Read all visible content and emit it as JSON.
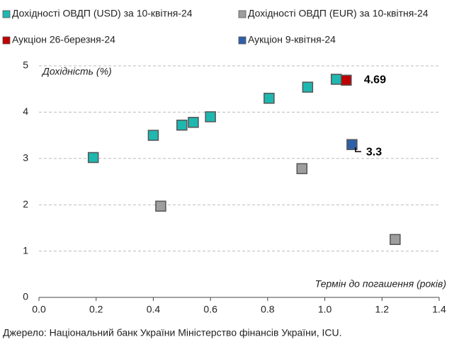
{
  "chart_data": {
    "type": "scatter",
    "y_label": "Дохідність (%)",
    "x_label": "Термін до погашення (років)",
    "source": "Джерело: Національний банк України Міністерство фінансів України, ICU.",
    "xlim": [
      0,
      1.4
    ],
    "xticks": [
      {
        "value": 0,
        "label": "0.0"
      },
      {
        "value": 0.2,
        "label": "0.2"
      },
      {
        "value": 0.4,
        "label": "0.4"
      },
      {
        "value": 0.6,
        "label": "0.6"
      },
      {
        "value": 0.8,
        "label": "0.8"
      },
      {
        "value": 1,
        "label": "1.0"
      },
      {
        "value": 1.2,
        "label": "1.2"
      },
      {
        "value": 1.4,
        "label": "1.4"
      }
    ],
    "ylim": [
      0,
      5
    ],
    "yticks": [
      0,
      1,
      2,
      3,
      4,
      5
    ],
    "grid": true,
    "series": [
      {
        "name": "Дохідності ОВДП (USD) за 10-квітня-24",
        "color": "#1fb8b0",
        "x": [
          0.19,
          0.4,
          0.5,
          0.54,
          0.6,
          0.805,
          0.94,
          1.04
        ],
        "values": [
          3.02,
          3.5,
          3.72,
          3.78,
          3.9,
          4.3,
          4.54,
          4.71
        ]
      },
      {
        "name": "Дохідності ОВДП (EUR) за 10-квітня-24",
        "color": "#9e9e9e",
        "x": [
          0.426,
          0.92,
          1.246
        ],
        "values": [
          1.97,
          2.78,
          1.25
        ]
      },
      {
        "name": "Аукціон 26-березня-24",
        "color": "#c00000",
        "x": [
          1.075
        ],
        "values": [
          4.69
        ],
        "data_labels": true
      },
      {
        "name": "Аукціон 9-квітня-24",
        "color": "#2e5fa8",
        "x": [
          1.095
        ],
        "values": [
          3.3
        ],
        "data_labels": true
      }
    ]
  }
}
